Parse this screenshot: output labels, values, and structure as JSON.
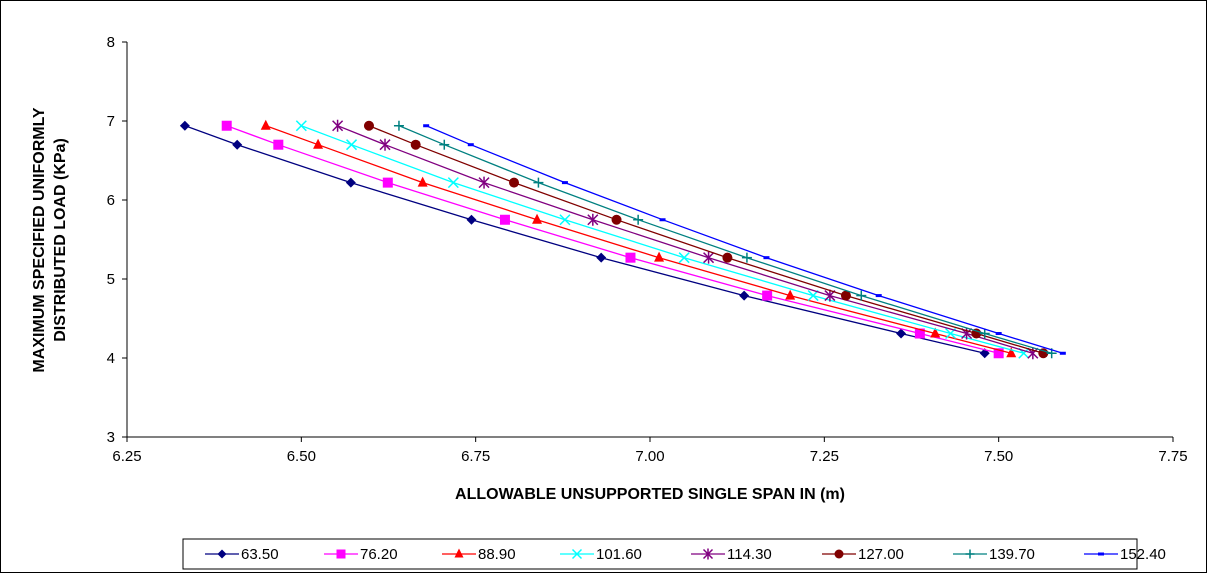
{
  "chart_data": {
    "type": "line",
    "xlabel": "ALLOWABLE UNSUPPORTED SINGLE SPAN IN (m)",
    "ylabel_line1": "MAXIMUM SPECIFIED UNIFORMLY",
    "ylabel_line2": "DISTRIBUTED LOAD (KPa)",
    "xlim": [
      6.25,
      7.75
    ],
    "ylim": [
      3,
      8
    ],
    "x_ticks": [
      "6.25",
      "6.50",
      "6.75",
      "7.00",
      "7.25",
      "7.50",
      "7.75"
    ],
    "y_ticks": [
      "3",
      "4",
      "5",
      "6",
      "7",
      "8"
    ],
    "grid": false,
    "legend_position": "bottom",
    "y_values": [
      6.94,
      6.7,
      6.22,
      5.75,
      5.27,
      4.79,
      4.31,
      4.06
    ],
    "series": [
      {
        "name": "63.50",
        "color": "#000080",
        "marker": "diamond",
        "x": [
          6.333,
          6.408,
          6.571,
          6.744,
          6.93,
          7.135,
          7.36,
          7.48
        ]
      },
      {
        "name": "76.20",
        "color": "#FF00FF",
        "marker": "square",
        "x": [
          6.393,
          6.467,
          6.624,
          6.792,
          6.972,
          7.168,
          7.387,
          7.5
        ]
      },
      {
        "name": "88.90",
        "color": "#FF0000",
        "marker": "triangle",
        "x": [
          6.449,
          6.524,
          6.674,
          6.838,
          7.013,
          7.201,
          7.409,
          7.518
        ]
      },
      {
        "name": "101.60",
        "color": "#00FFFF",
        "marker": "x",
        "x": [
          6.5,
          6.572,
          6.718,
          6.878,
          7.049,
          7.234,
          7.431,
          7.536
        ]
      },
      {
        "name": "114.30",
        "color": "#800080",
        "marker": "star",
        "x": [
          6.552,
          6.62,
          6.762,
          6.918,
          7.084,
          7.258,
          7.454,
          7.549
        ]
      },
      {
        "name": "127.00",
        "color": "#800000",
        "marker": "circle",
        "x": [
          6.597,
          6.664,
          6.805,
          6.952,
          7.111,
          7.281,
          7.468,
          7.564
        ]
      },
      {
        "name": "139.70",
        "color": "#008080",
        "marker": "plus",
        "x": [
          6.64,
          6.705,
          6.84,
          6.983,
          7.139,
          7.303,
          7.48,
          7.576
        ]
      },
      {
        "name": "152.40",
        "color": "#0000FF",
        "marker": "dash",
        "x": [
          6.679,
          6.743,
          6.878,
          7.018,
          7.167,
          7.328,
          7.5,
          7.592
        ]
      }
    ]
  }
}
